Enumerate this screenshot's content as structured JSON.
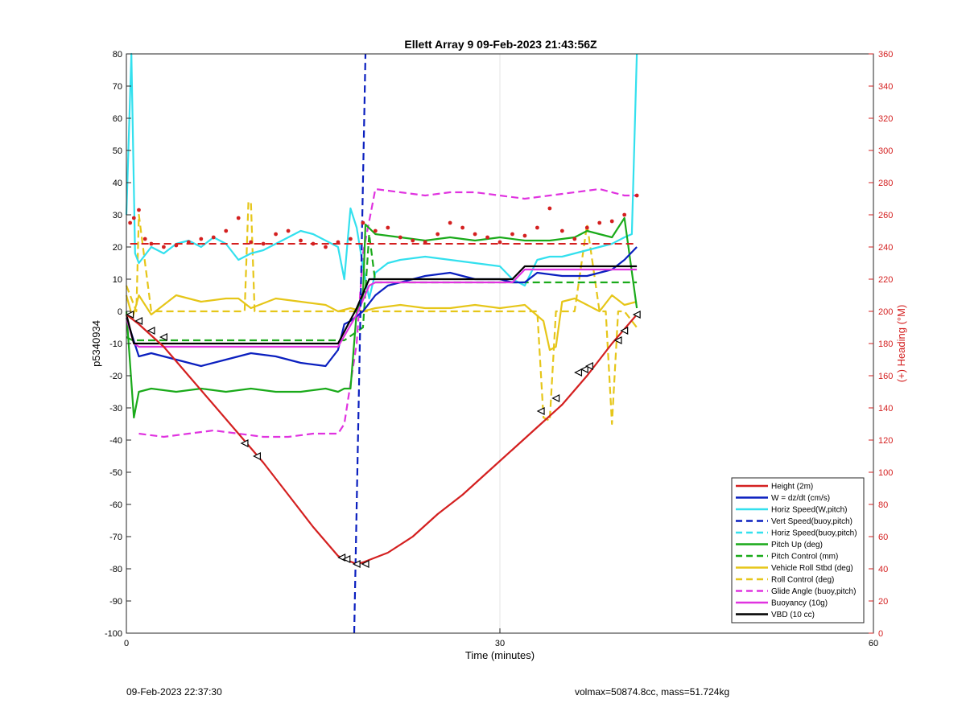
{
  "chart_data": {
    "type": "line",
    "title": "Ellett Array 9 09-Feb-2023 21:43:56Z",
    "xlabel": "Time (minutes)",
    "ylabel": "p5340934",
    "y2label": "(+) Heading (°M)",
    "xlim": [
      0,
      60
    ],
    "ylim": [
      -100,
      80
    ],
    "y2lim": [
      0,
      360
    ],
    "xticks": [
      "0",
      "30",
      "60"
    ],
    "yticks": [
      "80",
      "70",
      "60",
      "50",
      "40",
      "30",
      "20",
      "10",
      "0",
      "-10",
      "-20",
      "-30",
      "-40",
      "-50",
      "-60",
      "-70",
      "-80",
      "-90",
      "-100"
    ],
    "y2ticks": [
      "360",
      "340",
      "320",
      "300",
      "280",
      "260",
      "240",
      "220",
      "200",
      "180",
      "160",
      "140",
      "120",
      "100",
      "80",
      "60",
      "40",
      "20",
      "0"
    ],
    "grid": "x-only",
    "legend_position": "bottom-right",
    "colors": {
      "height": "#d42020",
      "w": "#0a1fbf",
      "horiz": "#33e0ee",
      "vert_buoy": "#0a1fbf",
      "horiz_buoy": "#33e0ee",
      "pitch": "#1aaa1a",
      "pitch_ctrl": "#1aaa1a",
      "roll": "#e6c619",
      "roll_ctrl": "#e6c619",
      "glide": "#e033e0",
      "buoyancy": "#e033e0",
      "vbd": "#000000",
      "heading": "#d42020"
    },
    "series": [
      {
        "name": "Height (2m)",
        "color": "#d42020",
        "dash": "solid",
        "x": [
          0,
          1,
          3,
          5,
          7,
          9,
          11,
          13,
          15,
          17,
          17.5,
          18.5,
          19,
          21,
          23,
          25,
          27,
          29,
          31,
          33,
          35,
          37,
          39,
          41
        ],
        "y": [
          -1,
          -4,
          -11,
          -20,
          -29,
          -38,
          -47,
          -57,
          -67,
          -76,
          -77,
          -78.5,
          -78,
          -75,
          -70,
          -63,
          -57,
          -50,
          -43,
          -36,
          -29,
          -20,
          -10,
          -1
        ]
      },
      {
        "name": "W = dz/dt (cm/s)",
        "color": "#0a1fbf",
        "dash": "solid",
        "x": [
          0,
          0.5,
          1,
          2,
          4,
          6,
          8,
          10,
          12,
          14,
          16,
          17,
          17.5,
          18,
          19,
          20,
          21,
          22,
          24,
          26,
          28,
          30,
          31,
          32,
          33,
          35,
          37,
          39,
          40,
          41
        ],
        "y": [
          -2,
          -8,
          -14,
          -13,
          -15,
          -17,
          -15,
          -13,
          -14,
          -16,
          -17,
          -12,
          -4,
          -3,
          0,
          5,
          8,
          9,
          11,
          12,
          10,
          10,
          9,
          9,
          12,
          11,
          11,
          13,
          16,
          20
        ]
      },
      {
        "name": "Horiz Speed(W,pitch)",
        "color": "#33e0ee",
        "dash": "solid",
        "x": [
          0,
          0.4,
          0.7,
          1,
          2,
          3,
          4,
          5,
          6,
          7,
          8,
          9,
          10,
          11,
          12,
          13,
          14,
          15,
          16,
          17,
          17.5,
          18,
          18.5,
          19,
          19.5,
          20,
          21,
          22,
          24,
          26,
          28,
          30,
          31,
          32,
          33,
          34,
          35,
          36,
          37,
          38,
          39,
          40,
          40.6,
          41
        ],
        "y": [
          30,
          80,
          18,
          15,
          20,
          18,
          21,
          22,
          20,
          23,
          21,
          16,
          18,
          19,
          21,
          23,
          25,
          24,
          22,
          20,
          10,
          32,
          26,
          14,
          4,
          12,
          15,
          16,
          17,
          16,
          15,
          14,
          10,
          8,
          16,
          17,
          17,
          18,
          19,
          20,
          21,
          23,
          24,
          80
        ]
      },
      {
        "name": "Vert Speed(buoy,pitch)",
        "color": "#0a1fbf",
        "dash": "dashed",
        "x": [
          18.3,
          19.2
        ],
        "y": [
          -100,
          80
        ]
      },
      {
        "name": "Horiz Speed(buoy,pitch)",
        "color": "#33e0ee",
        "dash": "dashed",
        "x": [],
        "y": []
      },
      {
        "name": "Pitch Up (deg)",
        "color": "#1aaa1a",
        "dash": "solid",
        "x": [
          0,
          0.6,
          1,
          2,
          4,
          6,
          8,
          10,
          12,
          14,
          16,
          17,
          17.5,
          18,
          18.5,
          19,
          19.2,
          20,
          22,
          24,
          26,
          28,
          30,
          32,
          34,
          36,
          37,
          38,
          39,
          40,
          41
        ],
        "y": [
          0,
          -33,
          -25,
          -24,
          -25,
          -24,
          -25,
          -24,
          -25,
          -25,
          -24,
          -25,
          -24,
          -24,
          0,
          5,
          27,
          24,
          23,
          22,
          23,
          22,
          23,
          22,
          22,
          23,
          25,
          24,
          23,
          29,
          1
        ]
      },
      {
        "name": "Pitch Control (mm)",
        "color": "#1aaa1a",
        "dash": "dashed",
        "x": [
          0,
          0.5,
          17,
          17.5,
          19,
          19.5,
          20,
          41
        ],
        "y": [
          -8,
          -9,
          -9,
          -9,
          -5,
          24,
          9,
          9
        ]
      },
      {
        "name": "Vehicle Roll Stbd (deg)",
        "color": "#e6c619",
        "dash": "solid",
        "x": [
          0,
          0.5,
          1,
          2,
          4,
          6,
          8,
          9,
          10,
          12,
          14,
          16,
          17,
          18,
          19,
          20,
          22,
          24,
          26,
          28,
          30,
          32,
          33.5,
          34,
          34.5,
          35,
          36,
          37,
          38,
          39,
          40,
          41
        ],
        "y": [
          5,
          -2,
          5,
          -1,
          5,
          3,
          4,
          4,
          1,
          4,
          3,
          2,
          0,
          1,
          0,
          1,
          2,
          1,
          1,
          2,
          1,
          2,
          -3,
          -12,
          -11,
          3,
          4,
          2,
          0,
          5,
          2,
          3
        ]
      },
      {
        "name": "Roll Control (deg)",
        "color": "#e6c619",
        "dash": "dashed",
        "x": [
          0,
          0.8,
          1,
          2,
          3,
          9.5,
          9.8,
          10,
          10.3,
          17,
          18,
          19,
          33,
          33.5,
          34,
          34.5,
          36,
          37,
          38,
          38.5,
          39,
          39.5,
          40,
          41
        ],
        "y": [
          8,
          0,
          30,
          0,
          0,
          0,
          34,
          34,
          0,
          0,
          0,
          0,
          0,
          -33,
          -34,
          0,
          0,
          27,
          0,
          0,
          -35,
          0,
          0,
          -5
        ]
      },
      {
        "name": "Glide Angle (buoy,pitch)",
        "color": "#e033e0",
        "dash": "dashed",
        "x": [
          1,
          3,
          5,
          7,
          9,
          11,
          13,
          15,
          17,
          17.5,
          18.5,
          19,
          20,
          22,
          24,
          26,
          28,
          30,
          32,
          34,
          36,
          38,
          40,
          41
        ],
        "y": [
          -38,
          -39,
          -38,
          -37,
          -38,
          -39,
          -39,
          -38,
          -38,
          -35,
          -10,
          18,
          38,
          37,
          36,
          37,
          37,
          36,
          35,
          36,
          37,
          38,
          36,
          36
        ]
      },
      {
        "name": "Buoyancy (10g)",
        "color": "#e033e0",
        "dash": "solid",
        "x": [
          0,
          0.6,
          1,
          17,
          18.5,
          19.5,
          20,
          31,
          32,
          41
        ],
        "y": [
          -2,
          -10,
          -11,
          -11,
          -1,
          8,
          9,
          9,
          13,
          13
        ]
      },
      {
        "name": "VBD (10 cc)",
        "color": "#000000",
        "dash": "solid",
        "x": [
          0,
          0.6,
          1,
          17,
          18.5,
          19.5,
          20,
          31,
          32,
          41
        ],
        "y": [
          -1,
          -10,
          -10,
          -10,
          1,
          10,
          10,
          10,
          14,
          14
        ]
      }
    ],
    "heading_series": {
      "name": "Heading",
      "axis": "right",
      "color": "#d42020",
      "style": "dots",
      "x": [
        0.3,
        0.6,
        1,
        1.5,
        2,
        3,
        4,
        5,
        6,
        7,
        8,
        9,
        10,
        11,
        12,
        13,
        14,
        15,
        16,
        17,
        18,
        19,
        20,
        21,
        22,
        23,
        24,
        25,
        26,
        27,
        28,
        29,
        30,
        31,
        32,
        33,
        34,
        35,
        36,
        37,
        38,
        39,
        40,
        41
      ],
      "y": [
        255,
        258,
        263,
        245,
        242,
        240,
        241,
        243,
        245,
        246,
        250,
        258,
        243,
        242,
        248,
        250,
        244,
        242,
        240,
        243,
        245,
        255,
        250,
        252,
        246,
        244,
        243,
        248,
        255,
        252,
        248,
        246,
        243,
        248,
        247,
        252,
        264,
        250,
        245,
        252,
        255,
        256,
        260,
        272
      ],
      "ref_line": 242
    },
    "markers": {
      "style": "triangle",
      "x": [
        0.3,
        1,
        2,
        3,
        9.5,
        10.5,
        17.3,
        17.7,
        18.5,
        19.2,
        33.3,
        34.5,
        36.3,
        36.8,
        37.2,
        39.5,
        40,
        41
      ],
      "y": [
        -1,
        -3,
        -6,
        -8,
        -41,
        -45,
        -76.5,
        -77,
        -78.5,
        -78.5,
        -31,
        -27,
        -19,
        -18,
        -17,
        -9,
        -6,
        -1
      ]
    },
    "legend": [
      "Height (2m)",
      "W = dz/dt (cm/s)",
      "Horiz Speed(W,pitch)",
      "Vert Speed(buoy,pitch)",
      "Horiz Speed(buoy,pitch)",
      "Pitch Up (deg)",
      "Pitch Control (mm)",
      "Vehicle Roll Stbd (deg)",
      "Roll Control (deg)",
      "Glide Angle (buoy,pitch)",
      "Buoyancy (10g)",
      "VBD (10 cc)"
    ]
  },
  "footer": {
    "left": "09-Feb-2023 22:37:30",
    "right": "volmax=50874.8cc, mass=51.724kg"
  }
}
